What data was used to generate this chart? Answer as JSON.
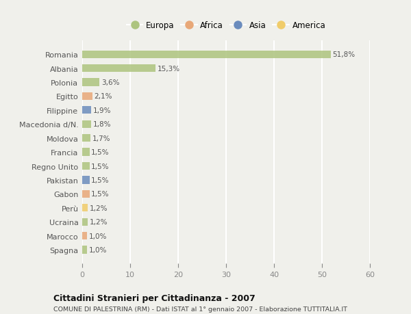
{
  "categories": [
    "Romania",
    "Albania",
    "Polonia",
    "Egitto",
    "Filippine",
    "Macedonia d/N.",
    "Moldova",
    "Francia",
    "Regno Unito",
    "Pakistan",
    "Gabon",
    "Perù",
    "Ucraina",
    "Marocco",
    "Spagna"
  ],
  "values": [
    51.8,
    15.3,
    3.6,
    2.1,
    1.9,
    1.8,
    1.7,
    1.5,
    1.5,
    1.5,
    1.5,
    1.2,
    1.2,
    1.0,
    1.0
  ],
  "labels": [
    "51,8%",
    "15,3%",
    "3,6%",
    "2,1%",
    "1,9%",
    "1,8%",
    "1,7%",
    "1,5%",
    "1,5%",
    "1,5%",
    "1,5%",
    "1,2%",
    "1,2%",
    "1,0%",
    "1,0%"
  ],
  "continents": [
    "Europa",
    "Europa",
    "Europa",
    "Africa",
    "Asia",
    "Europa",
    "Europa",
    "Europa",
    "Europa",
    "Asia",
    "Africa",
    "America",
    "Europa",
    "Africa",
    "Europa"
  ],
  "continent_colors": {
    "Europa": "#adc47e",
    "Africa": "#e8a878",
    "Asia": "#6b8cbd",
    "America": "#f0cc6a"
  },
  "legend_order": [
    "Europa",
    "Africa",
    "Asia",
    "America"
  ],
  "title": "Cittadini Stranieri per Cittadinanza - 2007",
  "subtitle": "COMUNE DI PALESTRINA (RM) - Dati ISTAT al 1° gennaio 2007 - Elaborazione TUTTITALIA.IT",
  "xlim": [
    0,
    60
  ],
  "xticks": [
    0,
    10,
    20,
    30,
    40,
    50,
    60
  ],
  "background_color": "#f0f0eb",
  "grid_color": "#ffffff",
  "bar_height": 0.55
}
